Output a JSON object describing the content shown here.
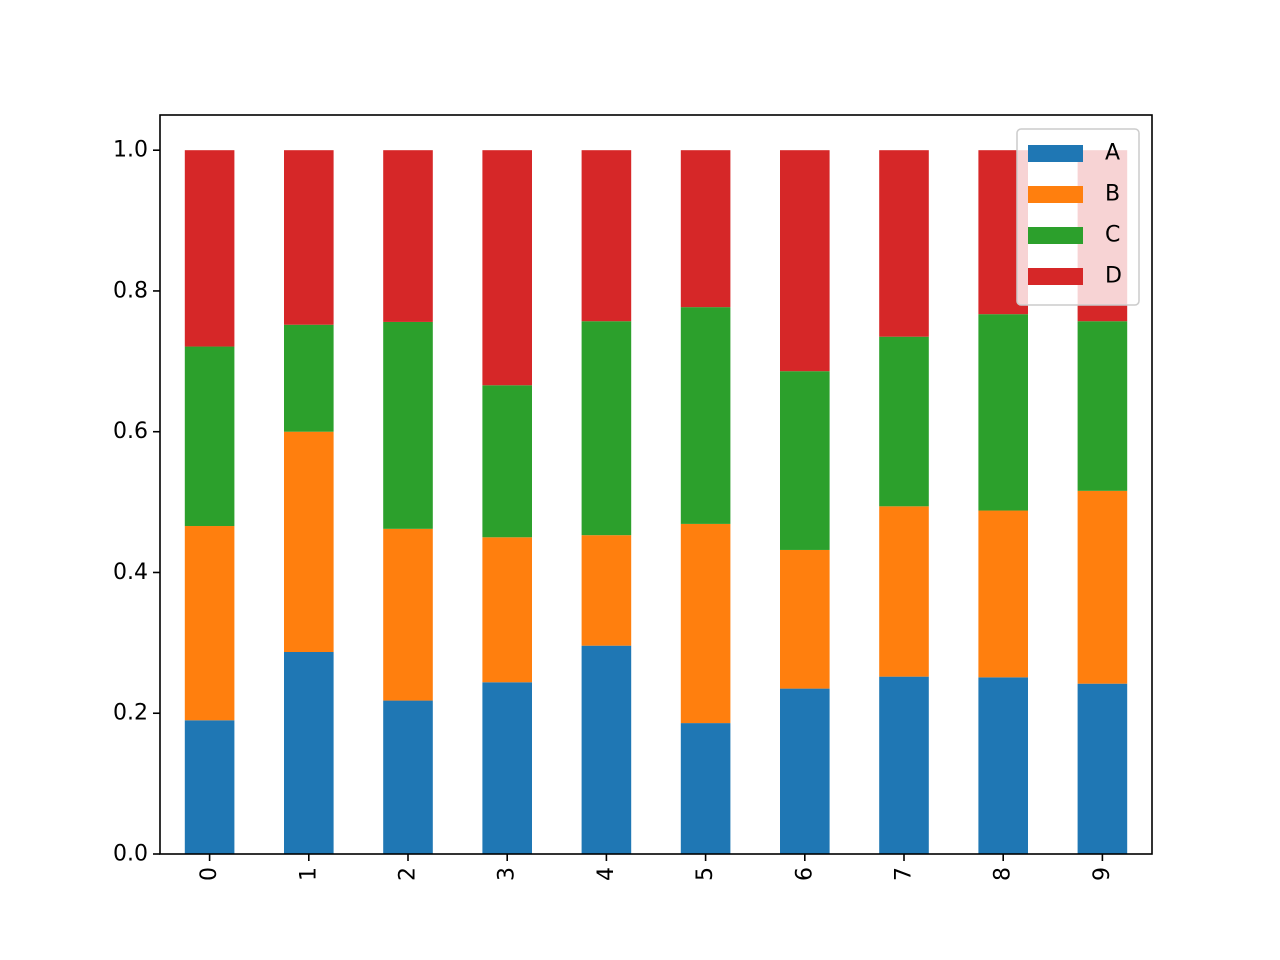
{
  "chart_data": {
    "type": "bar",
    "stacked": true,
    "title": "",
    "xlabel": "",
    "ylabel": "",
    "categories": [
      "0",
      "1",
      "2",
      "3",
      "4",
      "5",
      "6",
      "7",
      "8",
      "9"
    ],
    "ylim": [
      0.0,
      1.05
    ],
    "yticks": [
      "0.0",
      "0.2",
      "0.4",
      "0.6",
      "0.8",
      "1.0"
    ],
    "grid": false,
    "legend_position": "top-right",
    "series": [
      {
        "name": "A",
        "color": "#1f77b4",
        "values": [
          0.19,
          0.287,
          0.218,
          0.244,
          0.296,
          0.186,
          0.235,
          0.252,
          0.251,
          0.242
        ]
      },
      {
        "name": "B",
        "color": "#ff7f0e",
        "values": [
          0.276,
          0.313,
          0.244,
          0.206,
          0.157,
          0.283,
          0.197,
          0.242,
          0.237,
          0.274
        ]
      },
      {
        "name": "C",
        "color": "#2ca02c",
        "values": [
          0.255,
          0.152,
          0.294,
          0.216,
          0.304,
          0.308,
          0.254,
          0.241,
          0.279,
          0.241
        ]
      },
      {
        "name": "D",
        "color": "#d62728",
        "values": [
          0.279,
          0.248,
          0.244,
          0.334,
          0.243,
          0.223,
          0.314,
          0.265,
          0.233,
          0.243
        ]
      }
    ]
  }
}
